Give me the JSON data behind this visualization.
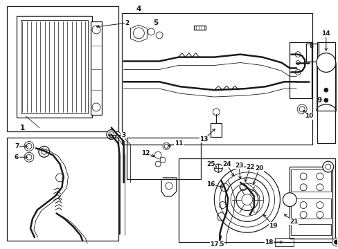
{
  "bg_color": "#ffffff",
  "line_color": "#1a1a1a",
  "fig_width": 4.89,
  "fig_height": 3.6,
  "dpi": 100,
  "lw_thin": 0.6,
  "lw_med": 0.9,
  "lw_thick": 1.4,
  "lw_pipe": 1.8,
  "fs_label": 6.5
}
